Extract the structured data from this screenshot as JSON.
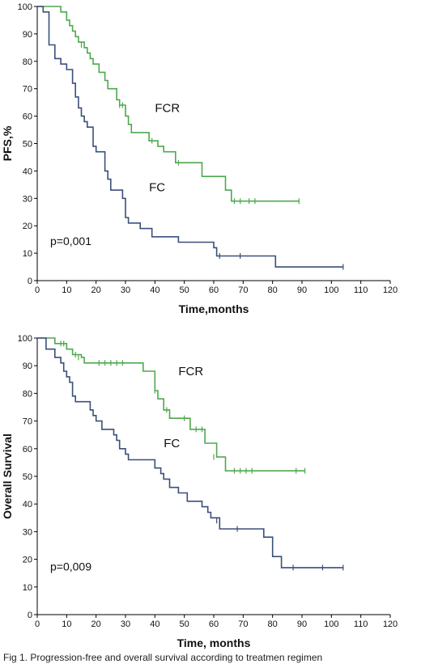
{
  "caption": "Fig 1. Progression-free and overall survival according to treatmen regimen",
  "colors": {
    "FCR": "#4fa84f",
    "FC": "#3b4f7a",
    "axis": "#000000"
  },
  "chart_data": [
    {
      "type": "line",
      "step": true,
      "xlabel": "Time,months",
      "ylabel": "PFS,%",
      "xlim": [
        0,
        120
      ],
      "ylim": [
        0,
        100
      ],
      "xticks": [
        0,
        10,
        20,
        30,
        40,
        50,
        60,
        70,
        80,
        90,
        100,
        110,
        120
      ],
      "yticks": [
        0,
        10,
        20,
        30,
        40,
        50,
        60,
        70,
        80,
        90,
        100
      ],
      "annotation": "p=0,001",
      "series": [
        {
          "name": "FCR",
          "color": "#4fa84f",
          "points": [
            [
              0,
              100
            ],
            [
              8,
              100
            ],
            [
              8,
              98
            ],
            [
              10,
              98
            ],
            [
              10,
              95
            ],
            [
              11,
              95
            ],
            [
              11,
              93
            ],
            [
              12,
              93
            ],
            [
              12,
              91
            ],
            [
              13,
              91
            ],
            [
              13,
              89
            ],
            [
              14,
              89
            ],
            [
              14,
              87
            ],
            [
              16,
              87
            ],
            [
              16,
              85
            ],
            [
              17,
              85
            ],
            [
              17,
              83
            ],
            [
              18,
              83
            ],
            [
              18,
              81
            ],
            [
              19,
              81
            ],
            [
              19,
              79
            ],
            [
              21,
              79
            ],
            [
              21,
              76
            ],
            [
              23,
              76
            ],
            [
              23,
              73
            ],
            [
              24,
              73
            ],
            [
              24,
              70
            ],
            [
              27,
              70
            ],
            [
              27,
              66
            ],
            [
              28,
              66
            ],
            [
              28,
              64
            ],
            [
              30,
              64
            ],
            [
              30,
              60
            ],
            [
              31,
              60
            ],
            [
              31,
              57
            ],
            [
              32,
              57
            ],
            [
              32,
              54
            ],
            [
              38,
              54
            ],
            [
              38,
              51
            ],
            [
              41,
              51
            ],
            [
              41,
              49
            ],
            [
              43,
              49
            ],
            [
              43,
              47
            ],
            [
              47,
              47
            ],
            [
              47,
              43
            ],
            [
              56,
              43
            ],
            [
              56,
              38
            ],
            [
              64,
              38
            ],
            [
              64,
              33
            ],
            [
              66,
              33
            ],
            [
              66,
              29
            ],
            [
              89,
              29
            ]
          ],
          "censored": [
            [
              15,
              86
            ],
            [
              28,
              64
            ],
            [
              29,
              64
            ],
            [
              39,
              51
            ],
            [
              48,
              43
            ],
            [
              67,
              29
            ],
            [
              69,
              29
            ],
            [
              72,
              29
            ],
            [
              74,
              29
            ],
            [
              89,
              29
            ]
          ]
        },
        {
          "name": "FC",
          "color": "#3b4f7a",
          "points": [
            [
              0,
              100
            ],
            [
              2,
              100
            ],
            [
              2,
              98
            ],
            [
              4,
              98
            ],
            [
              4,
              86
            ],
            [
              6,
              86
            ],
            [
              6,
              81
            ],
            [
              8,
              81
            ],
            [
              8,
              79
            ],
            [
              10,
              79
            ],
            [
              10,
              77
            ],
            [
              12,
              77
            ],
            [
              12,
              72
            ],
            [
              13,
              72
            ],
            [
              13,
              67
            ],
            [
              14,
              67
            ],
            [
              14,
              63
            ],
            [
              15,
              63
            ],
            [
              15,
              60
            ],
            [
              16,
              60
            ],
            [
              16,
              58
            ],
            [
              17,
              58
            ],
            [
              17,
              56
            ],
            [
              19,
              56
            ],
            [
              19,
              49
            ],
            [
              20,
              49
            ],
            [
              20,
              47
            ],
            [
              23,
              47
            ],
            [
              23,
              40
            ],
            [
              24,
              40
            ],
            [
              24,
              37
            ],
            [
              25,
              37
            ],
            [
              25,
              33
            ],
            [
              29,
              33
            ],
            [
              29,
              30
            ],
            [
              30,
              30
            ],
            [
              30,
              23
            ],
            [
              31,
              23
            ],
            [
              31,
              21
            ],
            [
              35,
              21
            ],
            [
              35,
              19
            ],
            [
              39,
              19
            ],
            [
              39,
              16
            ],
            [
              48,
              16
            ],
            [
              48,
              14
            ],
            [
              60,
              14
            ],
            [
              60,
              12
            ],
            [
              61,
              12
            ],
            [
              61,
              9
            ],
            [
              81,
              9
            ],
            [
              81,
              5
            ],
            [
              104,
              5
            ]
          ],
          "censored": [
            [
              62,
              9
            ],
            [
              69,
              9
            ],
            [
              104,
              5
            ]
          ]
        }
      ],
      "labels": [
        {
          "text": "FCR",
          "x": 40,
          "y": 63
        },
        {
          "text": "FC",
          "x": 38,
          "y": 34
        }
      ]
    },
    {
      "type": "line",
      "step": true,
      "xlabel": "Time, months",
      "ylabel": "Overall Survival",
      "xlim": [
        0,
        120
      ],
      "ylim": [
        0,
        100
      ],
      "xticks": [
        0,
        10,
        20,
        30,
        40,
        50,
        60,
        70,
        80,
        90,
        100,
        110,
        120
      ],
      "yticks": [
        0,
        10,
        20,
        30,
        40,
        50,
        60,
        70,
        80,
        90,
        100
      ],
      "annotation": "p=0,009",
      "series": [
        {
          "name": "FCR",
          "color": "#4fa84f",
          "points": [
            [
              0,
              100
            ],
            [
              6,
              100
            ],
            [
              6,
              98
            ],
            [
              10,
              98
            ],
            [
              10,
              96
            ],
            [
              12,
              96
            ],
            [
              12,
              94
            ],
            [
              15,
              94
            ],
            [
              15,
              93
            ],
            [
              16,
              93
            ],
            [
              16,
              91
            ],
            [
              36,
              91
            ],
            [
              36,
              88
            ],
            [
              40,
              88
            ],
            [
              40,
              81
            ],
            [
              41,
              81
            ],
            [
              41,
              78
            ],
            [
              43,
              78
            ],
            [
              43,
              74
            ],
            [
              45,
              74
            ],
            [
              45,
              71
            ],
            [
              52,
              71
            ],
            [
              52,
              67
            ],
            [
              57,
              67
            ],
            [
              57,
              62
            ],
            [
              61,
              62
            ],
            [
              61,
              57
            ],
            [
              64,
              57
            ],
            [
              64,
              52
            ],
            [
              91,
              52
            ]
          ],
          "censored": [
            [
              8,
              98
            ],
            [
              9,
              98
            ],
            [
              13,
              94
            ],
            [
              14,
              93
            ],
            [
              21,
              91
            ],
            [
              23,
              91
            ],
            [
              25,
              91
            ],
            [
              27,
              91
            ],
            [
              29,
              91
            ],
            [
              40,
              81
            ],
            [
              44,
              74
            ],
            [
              50,
              71
            ],
            [
              54,
              67
            ],
            [
              56,
              67
            ],
            [
              60,
              57
            ],
            [
              67,
              52
            ],
            [
              69,
              52
            ],
            [
              71,
              52
            ],
            [
              73,
              52
            ],
            [
              88,
              52
            ],
            [
              91,
              52
            ]
          ]
        },
        {
          "name": "FC",
          "color": "#3b4f7a",
          "points": [
            [
              0,
              100
            ],
            [
              3,
              100
            ],
            [
              3,
              96
            ],
            [
              6,
              96
            ],
            [
              6,
              93
            ],
            [
              8,
              93
            ],
            [
              8,
              91
            ],
            [
              9,
              91
            ],
            [
              9,
              88
            ],
            [
              10,
              88
            ],
            [
              10,
              86
            ],
            [
              11,
              86
            ],
            [
              11,
              84
            ],
            [
              12,
              84
            ],
            [
              12,
              79
            ],
            [
              13,
              79
            ],
            [
              13,
              77
            ],
            [
              18,
              77
            ],
            [
              18,
              74
            ],
            [
              19,
              74
            ],
            [
              19,
              72
            ],
            [
              20,
              72
            ],
            [
              20,
              70
            ],
            [
              22,
              70
            ],
            [
              22,
              67
            ],
            [
              26,
              67
            ],
            [
              26,
              65
            ],
            [
              27,
              65
            ],
            [
              27,
              63
            ],
            [
              28,
              63
            ],
            [
              28,
              60
            ],
            [
              30,
              60
            ],
            [
              30,
              58
            ],
            [
              31,
              58
            ],
            [
              31,
              56
            ],
            [
              40,
              56
            ],
            [
              40,
              53
            ],
            [
              42,
              53
            ],
            [
              42,
              51
            ],
            [
              43,
              51
            ],
            [
              43,
              49
            ],
            [
              45,
              49
            ],
            [
              45,
              46
            ],
            [
              48,
              46
            ],
            [
              48,
              44
            ],
            [
              51,
              44
            ],
            [
              51,
              41
            ],
            [
              56,
              41
            ],
            [
              56,
              39
            ],
            [
              58,
              39
            ],
            [
              58,
              37
            ],
            [
              59,
              37
            ],
            [
              59,
              35
            ],
            [
              62,
              35
            ],
            [
              62,
              31
            ],
            [
              77,
              31
            ],
            [
              77,
              28
            ],
            [
              80,
              28
            ],
            [
              80,
              21
            ],
            [
              83,
              21
            ],
            [
              83,
              17
            ],
            [
              104,
              17
            ]
          ],
          "censored": [
            [
              61,
              34
            ],
            [
              68,
              31
            ],
            [
              87,
              17
            ],
            [
              97,
              17
            ],
            [
              104,
              17
            ]
          ]
        }
      ],
      "labels": [
        {
          "text": "FCR",
          "x": 48,
          "y": 88
        },
        {
          "text": "FC",
          "x": 43,
          "y": 62
        }
      ]
    }
  ]
}
